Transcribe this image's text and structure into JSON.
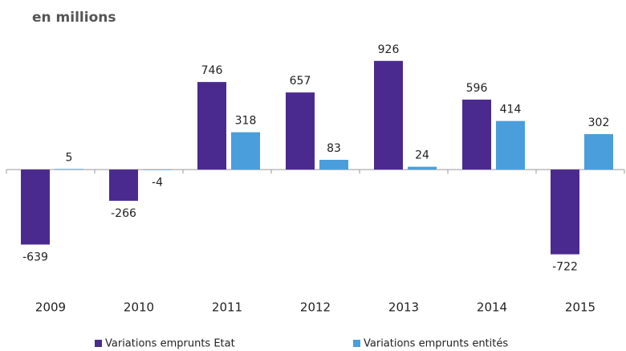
{
  "chart_data": {
    "type": "bar",
    "title": "en millions",
    "categories": [
      "2009",
      "2010",
      "2011",
      "2012",
      "2013",
      "2014",
      "2015"
    ],
    "series": [
      {
        "name": "Variations emprunts Etat",
        "color": "#4b2a8f",
        "values": [
          -639,
          -266,
          746,
          657,
          926,
          596,
          -722
        ]
      },
      {
        "name": "Variations emprunts entités",
        "color": "#4a9edb",
        "values": [
          5,
          -4,
          318,
          83,
          24,
          414,
          302
        ]
      }
    ],
    "ylim": [
      -800,
      1000
    ]
  }
}
